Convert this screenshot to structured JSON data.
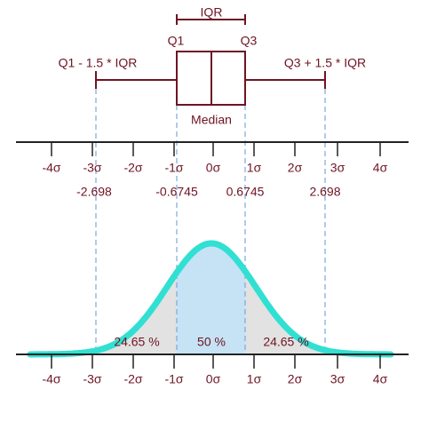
{
  "box_plot": {
    "iqr": "IQR",
    "q1": "Q1",
    "q3": "Q3",
    "lower_whisker": "Q1 - 1.5 * IQR",
    "upper_whisker": "Q3 + 1.5 * IQR",
    "median": "Median"
  },
  "sigma_axis_top": [
    "-4σ",
    "-3σ",
    "-2σ",
    "-1σ",
    "0σ",
    "1σ",
    "2σ",
    "3σ",
    "4σ"
  ],
  "quantiles": [
    "-2.698",
    "-0.6745",
    "0.6745",
    "2.698"
  ],
  "areas": [
    "24.65 %",
    "50 %",
    "24.65 %"
  ],
  "sigma_axis_bottom": [
    "-4σ",
    "-3σ",
    "-2σ",
    "-1σ",
    "0σ",
    "1σ",
    "2σ",
    "3σ",
    "4σ"
  ]
}
